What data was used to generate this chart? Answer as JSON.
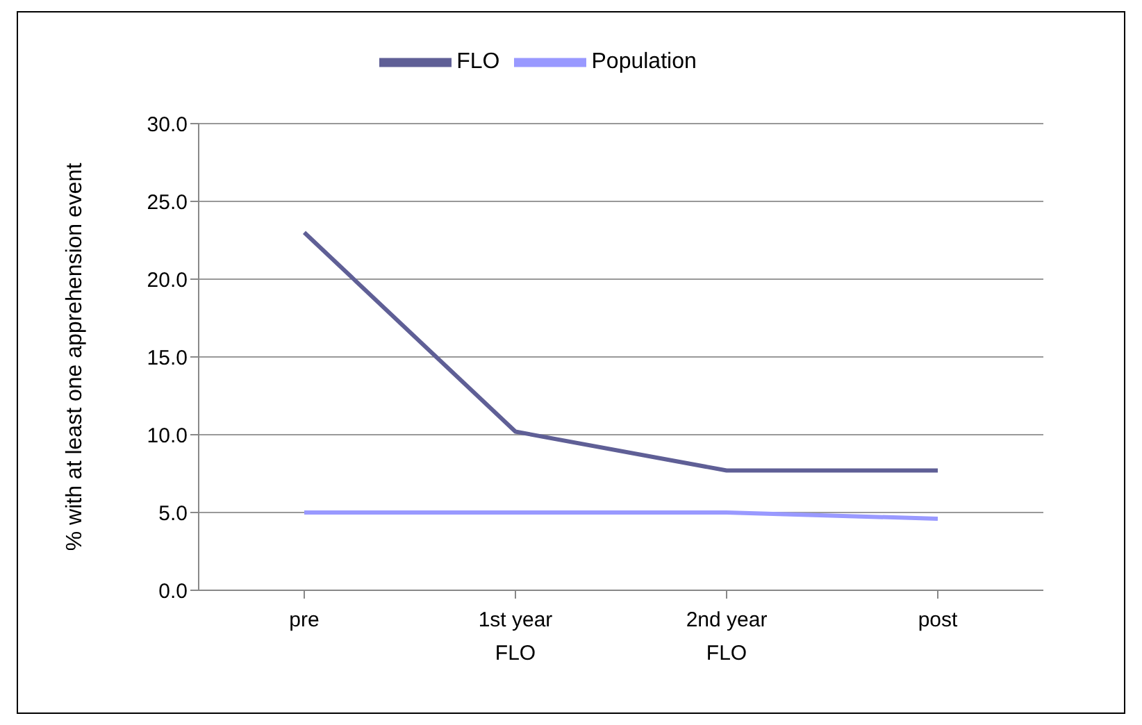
{
  "chart_data": {
    "type": "line",
    "ylabel": "% with at least one apprehension event",
    "categories": [
      "pre",
      "1st year FLO",
      "2nd year FLO",
      "post"
    ],
    "series": [
      {
        "name": "FLO",
        "color": "#5f5f96",
        "values": [
          23.0,
          10.2,
          7.7,
          7.7
        ]
      },
      {
        "name": "Population",
        "color": "#9999ff",
        "values": [
          5.0,
          5.0,
          5.0,
          4.6
        ]
      }
    ],
    "ylim": [
      0,
      30
    ],
    "yticks": [
      {
        "value": 0,
        "label": "0.0"
      },
      {
        "value": 5,
        "label": "5.0"
      },
      {
        "value": 10,
        "label": "10.0"
      },
      {
        "value": 15,
        "label": "15.0"
      },
      {
        "value": 20,
        "label": "20.0"
      },
      {
        "value": 25,
        "label": "25.0"
      },
      {
        "value": 30,
        "label": "30.0"
      }
    ],
    "grid": "y",
    "legend": "top",
    "marker": "none",
    "line_style": "solid"
  }
}
